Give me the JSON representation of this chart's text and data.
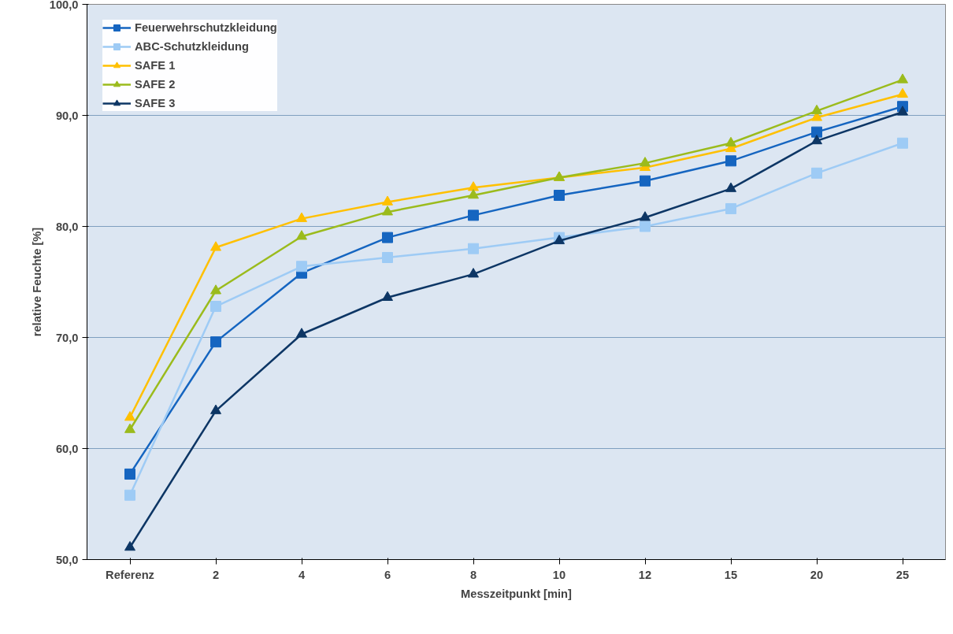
{
  "chart_data": {
    "type": "line",
    "xlabel": "Messzeitpunkt [min]",
    "ylabel": "relative Feuchte [%]",
    "categories": [
      "Referenz",
      "2",
      "4",
      "6",
      "8",
      "10",
      "12",
      "15",
      "20",
      "25"
    ],
    "series": [
      {
        "name": "Feuerwehrschutzkleidung",
        "color": "#1565c0",
        "marker": "square",
        "values": [
          57.7,
          69.6,
          75.8,
          79.0,
          81.0,
          82.8,
          84.1,
          85.9,
          88.5,
          90.8
        ]
      },
      {
        "name": "ABC-Schutzkleidung",
        "color": "#9ecbf5",
        "marker": "square",
        "values": [
          55.8,
          72.8,
          76.4,
          77.2,
          78.0,
          79.0,
          80.0,
          81.6,
          84.8,
          87.5
        ]
      },
      {
        "name": "SAFE 1",
        "color": "#ffc000",
        "marker": "triangle",
        "values": [
          62.8,
          78.1,
          80.7,
          82.2,
          83.5,
          84.4,
          85.3,
          87.0,
          89.8,
          91.9
        ]
      },
      {
        "name": "SAFE 2",
        "color": "#9bbb1c",
        "marker": "triangle",
        "values": [
          61.7,
          74.2,
          79.1,
          81.3,
          82.8,
          84.4,
          85.7,
          87.5,
          90.4,
          93.2
        ]
      },
      {
        "name": "SAFE 3",
        "color": "#0d3665",
        "marker": "triangle",
        "values": [
          51.1,
          63.4,
          70.3,
          73.6,
          75.7,
          78.7,
          80.8,
          83.4,
          87.7,
          90.3
        ]
      }
    ],
    "ylim": [
      50,
      100
    ],
    "yticks": [
      {
        "value": 50,
        "label": "50,0"
      },
      {
        "value": 60,
        "label": "60,0"
      },
      {
        "value": 70,
        "label": "70,0"
      },
      {
        "value": 80,
        "label": "80,0"
      },
      {
        "value": 90,
        "label": "90,0"
      },
      {
        "value": 100,
        "label": "100,0"
      }
    ],
    "grid": "y",
    "legend": "top left",
    "line_style": "solid"
  }
}
